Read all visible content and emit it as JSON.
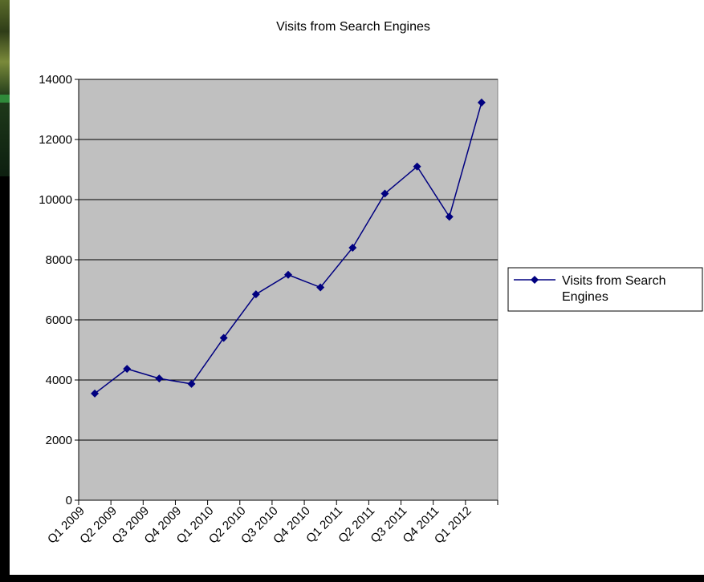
{
  "chart_data": {
    "type": "line",
    "title": "Visits from Search Engines",
    "xlabel": "",
    "ylabel": "",
    "categories": [
      "Q1 2009",
      "Q2 2009",
      "Q3 2009",
      "Q4 2009",
      "Q1 2010",
      "Q2 2010",
      "Q3 2010",
      "Q4 2010",
      "Q1 2011",
      "Q2 2011",
      "Q3 2011",
      "Q4 2011",
      "Q1 2012"
    ],
    "series": [
      {
        "name": "Visits from Search Engines",
        "values": [
          3550,
          4370,
          4050,
          3870,
          5400,
          6850,
          7500,
          7080,
          8400,
          10200,
          11100,
          9430,
          13230
        ]
      }
    ],
    "ylim": [
      0,
      14000
    ],
    "yticks": [
      0,
      2000,
      4000,
      6000,
      8000,
      10000,
      12000,
      14000
    ],
    "grid": "horizontal",
    "legend": "right",
    "colors": {
      "series": "#000080",
      "plot_bg": "#c0c0c0"
    }
  }
}
